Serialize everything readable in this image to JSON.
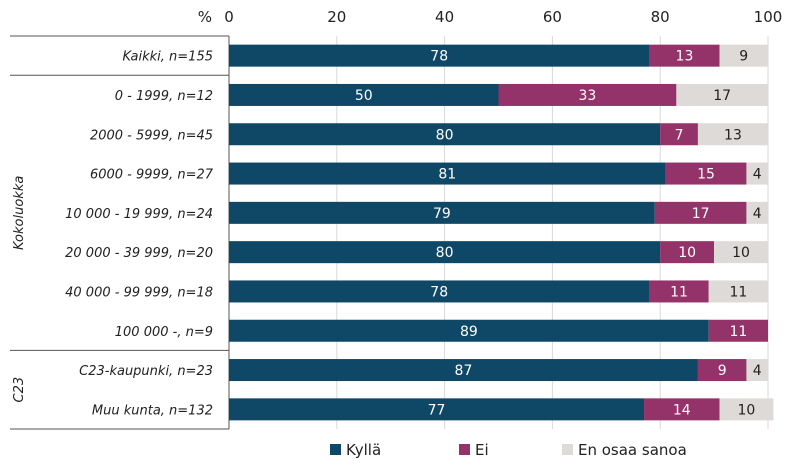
{
  "chart_data": {
    "type": "bar",
    "orientation": "horizontal",
    "stacked": true,
    "axis_unit_label": "%",
    "xlim": [
      0,
      100
    ],
    "xticks": [
      0,
      20,
      40,
      60,
      80,
      100
    ],
    "grid": true,
    "legend_position": "bottom",
    "categories": [
      "Kaikki, n=155",
      "0 - 1999, n=12",
      "2000 - 5999, n=45",
      "6000 - 9999, n=27",
      "10 000 - 19 999, n=24",
      "20 000 - 39 999, n=20",
      "40 000 - 99 999, n=18",
      "100 000 -, n=9",
      "C23-kaupunki, n=23",
      "Muu kunta, n=132"
    ],
    "groups": [
      {
        "label": "Kokoluokka",
        "from": 1,
        "to": 7
      },
      {
        "label": "C23",
        "from": 8,
        "to": 9
      }
    ],
    "series": [
      {
        "name": "Kyllä",
        "color": "#0f4766",
        "label_color": "#ffffff",
        "values": [
          78,
          50,
          80,
          81,
          79,
          80,
          78,
          89,
          87,
          77
        ]
      },
      {
        "name": "Ei",
        "color": "#94336a",
        "label_color": "#ffffff",
        "values": [
          13,
          33,
          7,
          15,
          17,
          10,
          11,
          11,
          9,
          14
        ]
      },
      {
        "name": "En osaa sanoa",
        "color": "#dedad7",
        "label_color": "#222222",
        "values": [
          9,
          17,
          13,
          4,
          4,
          10,
          11,
          0,
          4,
          10
        ]
      }
    ]
  }
}
